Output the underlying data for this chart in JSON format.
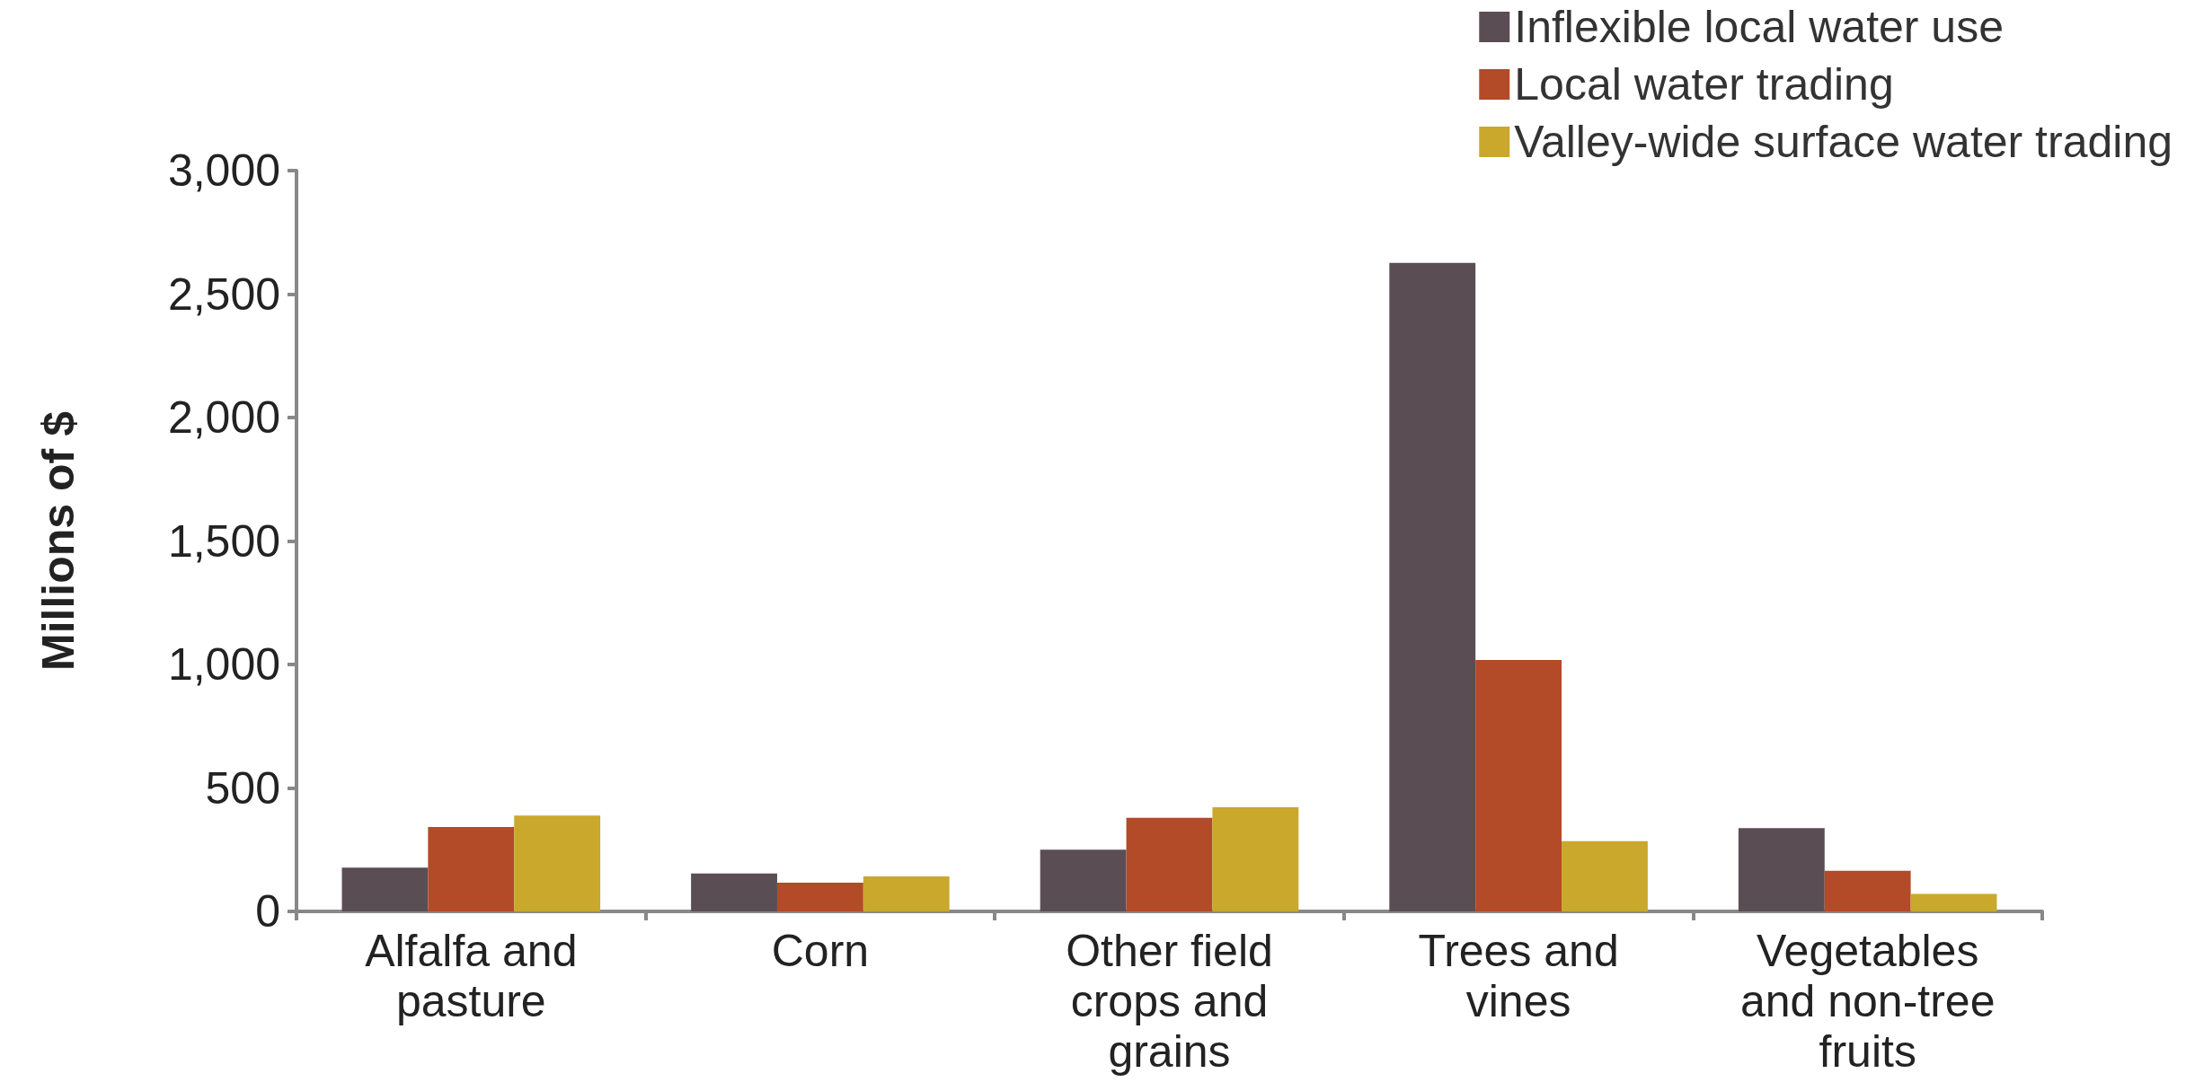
{
  "chart_data": {
    "type": "bar",
    "ylabel": "Millions of $",
    "categories": [
      "Alfalfa and pasture",
      "Corn",
      "Other field crops and grains",
      "Trees and vines",
      "Vegetables and non-tree fruits"
    ],
    "series": [
      {
        "name": "Inflexible local water use",
        "color": "#5a4e54",
        "values": [
          177,
          154,
          250,
          2626,
          337
        ]
      },
      {
        "name": "Local water trading",
        "color": "#b34a28",
        "values": [
          342,
          116,
          379,
          1018,
          165
        ]
      },
      {
        "name": "Valley-wide surface water trading",
        "color": "#c9a82c",
        "values": [
          388,
          142,
          422,
          285,
          71
        ]
      }
    ],
    "ylim": [
      0,
      3000
    ],
    "yticks": [
      0,
      500,
      {
        "value": 1000,
        "label": "1,000"
      },
      {
        "value": 1500,
        "label": "1,500"
      },
      {
        "value": 2000,
        "label": "2,000"
      },
      {
        "value": 2500,
        "label": "2,500"
      },
      {
        "value": 3000,
        "label": "3,000"
      }
    ],
    "grid": false,
    "legend": "top right"
  }
}
